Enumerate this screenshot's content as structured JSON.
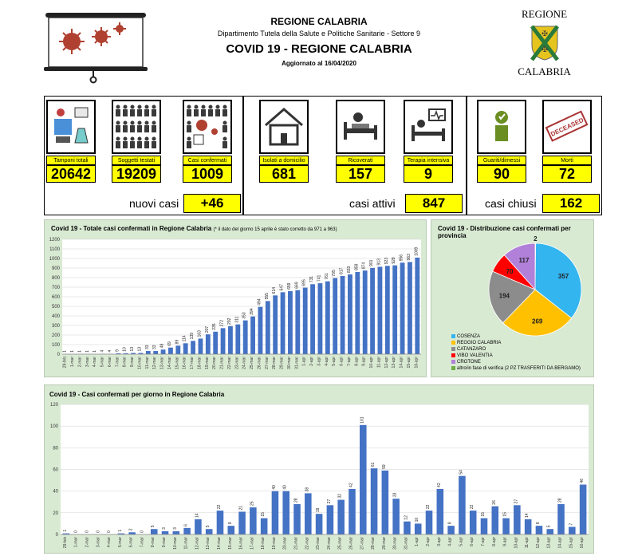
{
  "header": {
    "region": "REGIONE CALABRIA",
    "department": "Dipartimento Tutela della Salute e Politiche Sanitarie - Settore 9",
    "title": "COVID 19 - REGIONE CALABRIA",
    "updated": "Aggiornato al  16/04/2020",
    "logo_top": "REGIONE",
    "logo_bottom": "CALABRIA"
  },
  "stats": {
    "tamponi": {
      "label": "Tamponi totali",
      "value": "20642"
    },
    "soggetti": {
      "label": "Soggetti testati",
      "value": "19209"
    },
    "confermati": {
      "label": "Casi confermati",
      "value": "1009"
    },
    "isolati": {
      "label": "Isolati a domicilio",
      "value": "681"
    },
    "ricoverati": {
      "label": "Ricoverati",
      "value": "157"
    },
    "terapia": {
      "label": "Terapia intensiva",
      "value": "9"
    },
    "guariti": {
      "label": "Guariti/dimessi",
      "value": "90"
    },
    "morti": {
      "label": "Morti",
      "value": "72"
    },
    "morti_stamp": "DECEASED"
  },
  "summary": {
    "nuovi_label": "nuovi casi",
    "nuovi_value": "+46",
    "attivi_label": "casi attivi",
    "attivi_value": "847",
    "chiusi_label": "casi chiusi",
    "chiusi_value": "162"
  },
  "colors": {
    "bar": "#4472c4",
    "panel_bg": "#d9ead3",
    "highlight": "#ffff00"
  },
  "chart_data": [
    {
      "type": "bar",
      "title": "Covid 19 - Totale casi confermati in Regione Calabria",
      "note": "(* il dato del giorno 15 aprile è stato corretto da 971 a 963)",
      "ylim": [
        0,
        1200
      ],
      "yticks": [
        0,
        100,
        200,
        300,
        400,
        500,
        600,
        700,
        800,
        900,
        1000,
        1100,
        1200
      ],
      "categories": [
        "29-feb",
        "1-mar",
        "2-mar",
        "3-mar",
        "4-mar",
        "5-mar",
        "6-mar",
        "7-mar",
        "8-mar",
        "9-mar",
        "10-mar",
        "11-mar",
        "12-mar",
        "13-mar",
        "14-mar",
        "15-mar",
        "16-mar",
        "17-mar",
        "18-mar",
        "19-mar",
        "20-mar",
        "21-mar",
        "22-mar",
        "23-mar",
        "24-mar",
        "25-mar",
        "26-mar",
        "27-mar",
        "28-mar",
        "29-mar",
        "30-mar",
        "31-mar",
        "1-apr",
        "2-apr",
        "3-apr",
        "4-apr",
        "5-apr",
        "6-apr",
        "7-apr",
        "8-apr",
        "9-apr",
        "10-apr",
        "11-apr",
        "12-apr",
        "13-apr",
        "14-apr",
        "15-apr",
        "16-apr"
      ],
      "values": [
        1,
        1,
        1,
        1,
        1,
        4,
        4,
        9,
        10,
        13,
        13,
        33,
        33,
        48,
        69,
        89,
        114,
        139,
        163,
        207,
        235,
        272,
        292,
        311,
        353,
        394,
        494,
        555,
        614,
        647,
        659,
        669,
        695,
        731,
        741,
        761,
        795,
        817,
        833,
        859,
        874,
        901,
        913,
        923,
        928,
        956,
        963,
        1009
      ]
    },
    {
      "type": "pie",
      "title": "Covid 19 - Distribuzione casi confermati per provincia",
      "labels": [
        "COSENZA",
        "REGGIO CALABRIA",
        "CATANZARO",
        "VIBO VALENTIA",
        "CROTONE",
        "altro/in fase di verifica (2 PZ TRASFERITI DA BERGAMO)"
      ],
      "values": [
        357,
        269,
        194,
        70,
        117,
        2
      ],
      "colors": [
        "#33b5f0",
        "#ffc000",
        "#8c8c8c",
        "#ff0000",
        "#b180d9",
        "#70ad47"
      ]
    },
    {
      "type": "bar",
      "title": "Covid 19 - Casi confermati per giorno in Regione Calabria",
      "ylim": [
        0,
        120
      ],
      "yticks": [
        0,
        20,
        40,
        60,
        80,
        100,
        120
      ],
      "categories": [
        "29-feb",
        "1-mar",
        "2-mar",
        "3-mar",
        "4-mar",
        "5-mar",
        "6-mar",
        "7-mar",
        "8-mar",
        "9-mar",
        "10-mar",
        "11-mar",
        "12-mar",
        "13-mar",
        "14-mar",
        "15-mar",
        "16-mar",
        "17-mar",
        "18-mar",
        "19-mar",
        "20-mar",
        "21-mar",
        "22-mar",
        "23-mar",
        "24-mar",
        "25-mar",
        "26-mar",
        "27-mar",
        "28-mar",
        "29-mar",
        "30-mar",
        "31-mar",
        "1-apr",
        "2-apr",
        "3-apr",
        "4-apr",
        "5-apr",
        "6-apr",
        "7-apr",
        "8-apr",
        "9-apr",
        "10-apr",
        "11-apr",
        "12-apr",
        "13-apr",
        "14-apr",
        "15-apr",
        "16-apr"
      ],
      "values": [
        1,
        0,
        0,
        0,
        0,
        1,
        2,
        0,
        5,
        3,
        3,
        6,
        14,
        5,
        22,
        8,
        21,
        25,
        15,
        40,
        40,
        28,
        38,
        19,
        27,
        32,
        42,
        101,
        61,
        59,
        33,
        12,
        10,
        22,
        42,
        8,
        54,
        22,
        15,
        26,
        15,
        27,
        14,
        8,
        5,
        28,
        7,
        46
      ],
      "labels": [
        "1",
        "0",
        "0",
        "0",
        "0",
        "1",
        "2",
        "0",
        "5",
        "3",
        "3",
        "6",
        "14",
        "5",
        "22",
        "8",
        "21",
        "25",
        "15",
        "40",
        "40",
        "28",
        "38",
        "19",
        "27",
        "32",
        "42",
        "101",
        "61",
        "59",
        "33",
        "12",
        "10",
        "22",
        "42",
        "8",
        "54",
        "22",
        "15",
        "26",
        "15",
        "27",
        "14",
        "8",
        "5",
        "28",
        "7",
        "46"
      ]
    }
  ]
}
